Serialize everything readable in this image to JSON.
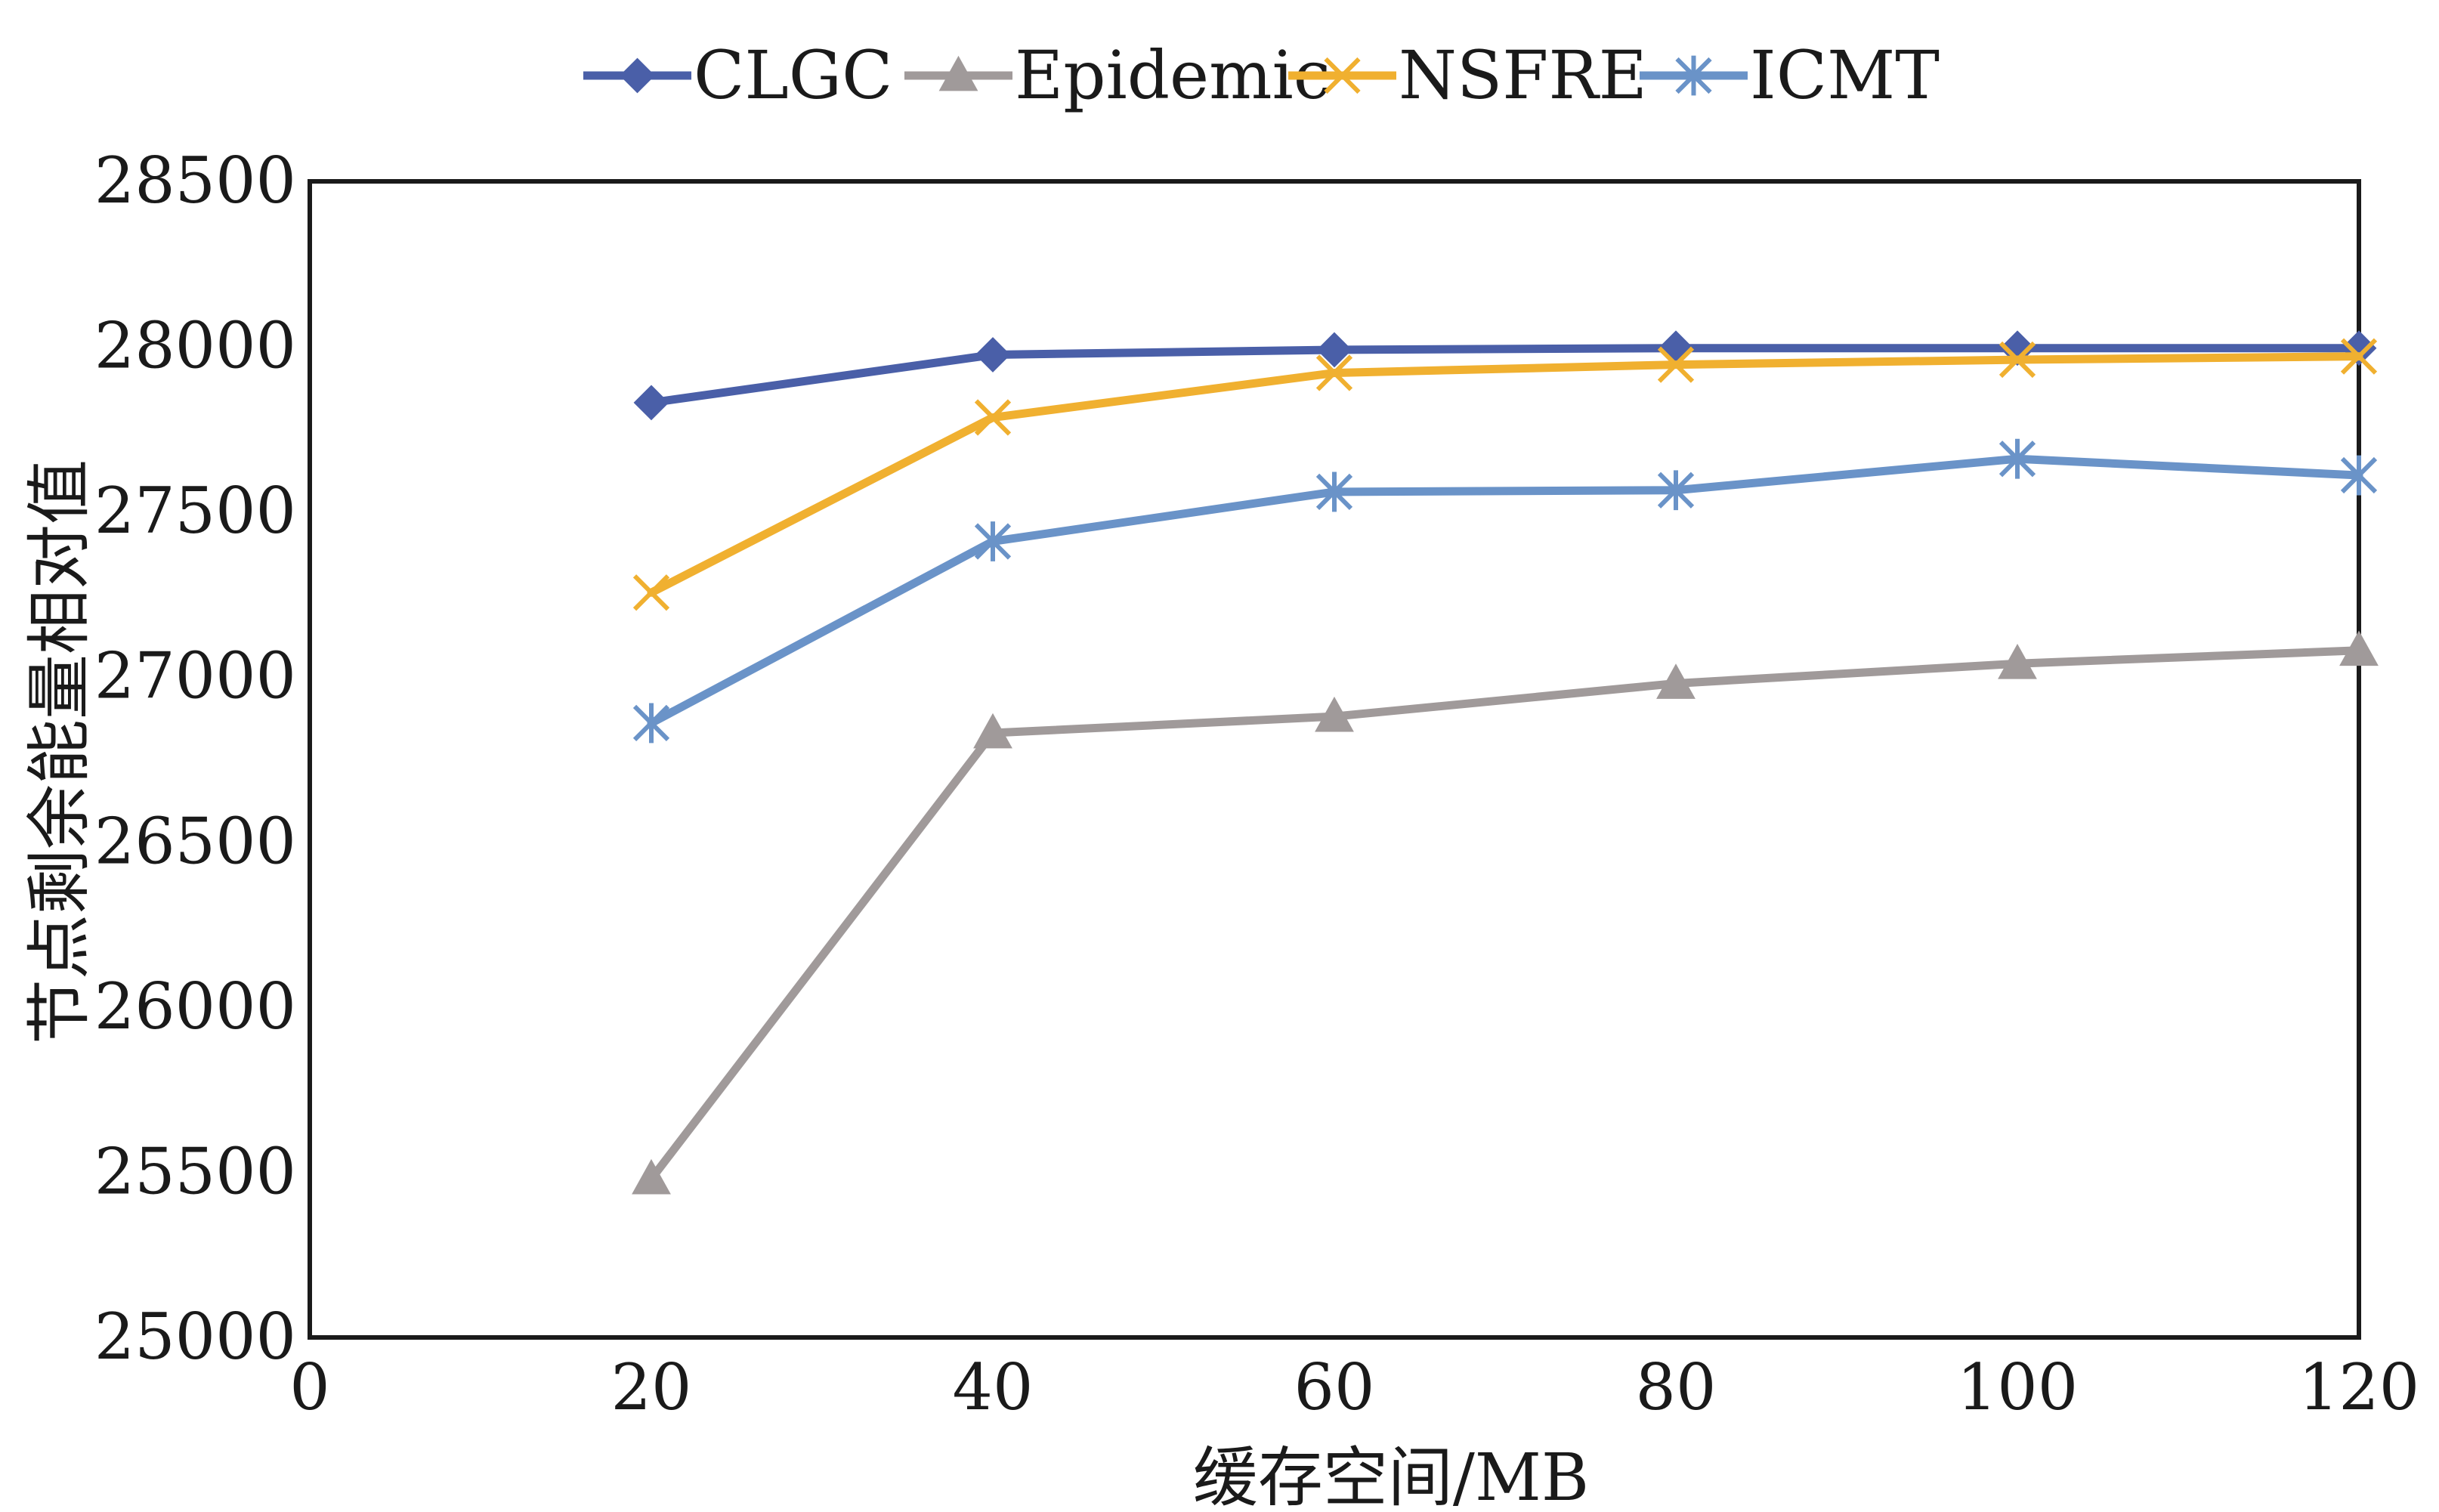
{
  "chart_data": {
    "type": "line",
    "title": "",
    "xlabel": "缓存空间/MB",
    "ylabel": "节点剩余能量相对值",
    "xlim": [
      0,
      120
    ],
    "ylim": [
      25000,
      28500
    ],
    "x_ticks": [
      0,
      20,
      40,
      60,
      80,
      100,
      120
    ],
    "y_ticks": [
      25000,
      25500,
      26000,
      26500,
      27000,
      27500,
      28000,
      28500
    ],
    "x": [
      20,
      40,
      60,
      80,
      100,
      120
    ],
    "grid": false,
    "legend_position": "top",
    "series": [
      {
        "name": "CLGC",
        "color": "#4a5fa8",
        "marker": "diamond",
        "values": [
          27830,
          27975,
          27990,
          27995,
          27995,
          27995
        ]
      },
      {
        "name": "Epidemic",
        "color": "#a09a9a",
        "marker": "triangle",
        "values": [
          25480,
          26830,
          26880,
          26980,
          27040,
          27080
        ]
      },
      {
        "name": "NSFRE",
        "color": "#f0b030",
        "marker": "x",
        "values": [
          27255,
          27785,
          27920,
          27945,
          27960,
          27970
        ]
      },
      {
        "name": "ICMT",
        "color": "#6a93c8",
        "marker": "asterisk",
        "values": [
          26860,
          27410,
          27560,
          27565,
          27660,
          27610
        ]
      }
    ]
  }
}
